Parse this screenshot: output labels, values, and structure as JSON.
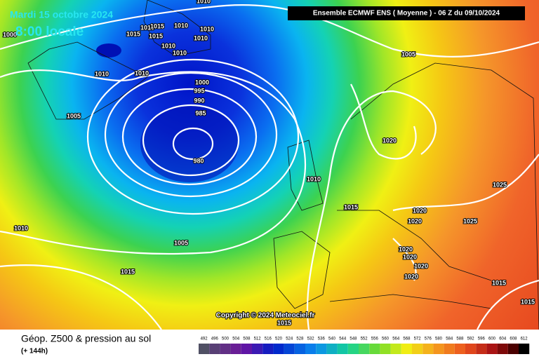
{
  "header": {
    "model": "Ensemble ECMWF ENS  ( Moyenne )  -  06 Z du 09/10/2024",
    "date": "Mardi 15 octobre 2024",
    "time": "8:00 locale"
  },
  "isobar_labels": [
    1010,
    1010,
    1015,
    1015,
    1015,
    1015,
    1010,
    1010,
    1010,
    1010,
    1010,
    1010,
    1005,
    1000,
    995,
    990,
    985,
    980,
    1005,
    1020,
    1010,
    1015,
    1020,
    1020,
    1025,
    1025,
    1010,
    1005,
    1015,
    1020,
    1020,
    1020,
    1020,
    1015,
    1015,
    1015,
    1000
  ],
  "copyright": "Copyright © 2024 Meteociel.fr",
  "footer": {
    "caption": "Géop. Z500 & pression au sol",
    "lead": "(+ 144h)"
  },
  "colorbar": {
    "values": [
      492,
      496,
      500,
      504,
      508,
      512,
      516,
      520,
      524,
      528,
      532,
      536,
      540,
      544,
      548,
      552,
      556,
      560,
      564,
      568,
      572,
      576,
      580,
      584,
      588,
      592,
      596,
      600,
      604,
      608,
      612
    ]
  }
}
